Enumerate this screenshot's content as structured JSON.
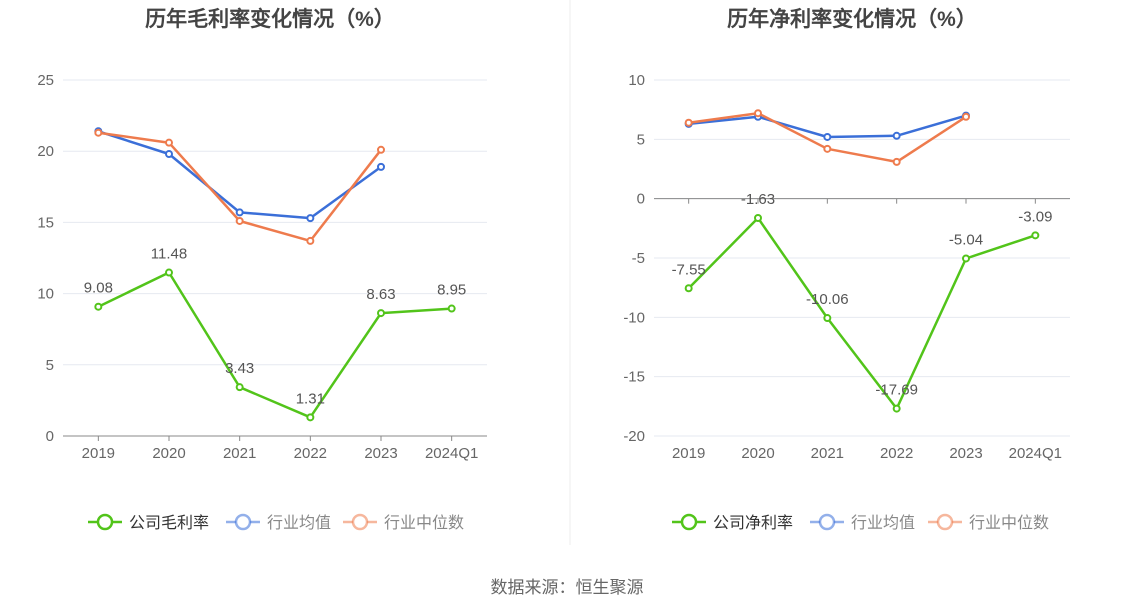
{
  "footer": {
    "source": "数据来源：恒生聚源"
  },
  "colors": {
    "company": "#52c41a",
    "industry_avg": "#3b6fd8",
    "industry_median": "#ee7b4d",
    "grid": "#e6e9f0",
    "axis": "#888888",
    "text": "#666666",
    "title": "#444444"
  },
  "chart_data": [
    {
      "type": "line",
      "title": "历年毛利率变化情况（%）",
      "categories": [
        "2019",
        "2020",
        "2021",
        "2022",
        "2023",
        "2024Q1"
      ],
      "ylim": [
        0,
        25
      ],
      "yticks": [
        0,
        5,
        10,
        15,
        20,
        25
      ],
      "grid": true,
      "legend_position": "bottom",
      "series": [
        {
          "name": "公司毛利率",
          "color": "#52c41a",
          "labels": true,
          "values": [
            9.08,
            11.48,
            3.43,
            1.31,
            8.63,
            8.95
          ]
        },
        {
          "name": "行业均值",
          "color": "#3b6fd8",
          "labels": false,
          "values": [
            21.4,
            19.8,
            15.7,
            15.3,
            18.9,
            null
          ]
        },
        {
          "name": "行业中位数",
          "color": "#ee7b4d",
          "labels": false,
          "values": [
            21.3,
            20.6,
            15.1,
            13.7,
            20.1,
            null
          ]
        }
      ]
    },
    {
      "type": "line",
      "title": "历年净利率变化情况（%）",
      "categories": [
        "2019",
        "2020",
        "2021",
        "2022",
        "2023",
        "2024Q1"
      ],
      "ylim": [
        -20,
        10
      ],
      "yticks": [
        -20,
        -15,
        -10,
        -5,
        0,
        5,
        10
      ],
      "grid": true,
      "legend_position": "bottom",
      "series": [
        {
          "name": "公司净利率",
          "color": "#52c41a",
          "labels": true,
          "values": [
            -7.55,
            -1.63,
            -10.06,
            -17.69,
            -5.04,
            -3.09
          ]
        },
        {
          "name": "行业均值",
          "color": "#3b6fd8",
          "labels": false,
          "values": [
            6.3,
            6.9,
            5.2,
            5.3,
            7.0,
            null
          ]
        },
        {
          "name": "行业中位数",
          "color": "#ee7b4d",
          "labels": false,
          "values": [
            6.4,
            7.2,
            4.2,
            3.1,
            6.9,
            null
          ]
        }
      ]
    }
  ]
}
